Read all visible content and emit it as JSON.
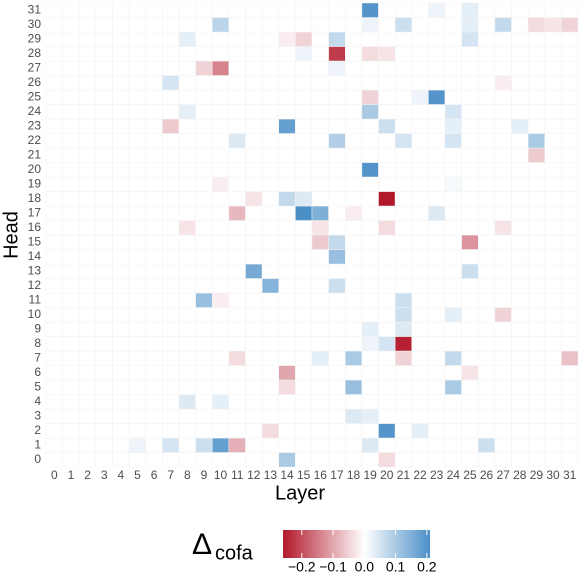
{
  "chart_data": {
    "type": "heatmap",
    "x_label": "Layer",
    "y_label": "Head",
    "x": [
      0,
      1,
      2,
      3,
      4,
      5,
      6,
      7,
      8,
      9,
      10,
      11,
      12,
      13,
      14,
      15,
      16,
      17,
      18,
      19,
      20,
      21,
      22,
      23,
      24,
      25,
      26,
      27,
      28,
      29,
      30,
      31
    ],
    "y": [
      0,
      1,
      2,
      3,
      4,
      5,
      6,
      7,
      8,
      9,
      10,
      11,
      12,
      13,
      14,
      15,
      16,
      17,
      18,
      19,
      20,
      21,
      22,
      23,
      24,
      25,
      26,
      27,
      28,
      29,
      30,
      31
    ],
    "values": [
      [
        0,
        0,
        0,
        0,
        0,
        0,
        0,
        0,
        0,
        0,
        0,
        0,
        0,
        0,
        0.1,
        0,
        0,
        0,
        0,
        0,
        -0.04,
        0,
        0,
        0,
        0,
        0,
        0,
        0,
        0,
        0,
        0,
        0
      ],
      [
        0,
        0,
        0,
        0,
        0,
        0.02,
        0,
        0.05,
        0,
        0.06,
        0.18,
        -0.09,
        0,
        0,
        0,
        0,
        0,
        0,
        0,
        0.04,
        0,
        0,
        0,
        0,
        0,
        0,
        0.06,
        0,
        0,
        0,
        0,
        0
      ],
      [
        0,
        0,
        0,
        0,
        0,
        0,
        0,
        0,
        0,
        0,
        0,
        0,
        0,
        -0.04,
        0,
        0,
        0,
        0,
        0,
        0,
        0.2,
        0,
        0.03,
        0,
        0,
        0,
        0,
        0,
        0,
        0,
        0,
        0
      ],
      [
        0,
        0,
        0,
        0,
        0,
        0,
        0,
        0,
        0,
        0,
        0,
        0,
        0,
        0,
        0,
        0,
        0,
        0,
        0.04,
        0.03,
        0,
        0,
        0,
        0,
        0,
        0,
        0,
        0,
        0,
        0,
        0,
        0
      ],
      [
        0,
        0,
        0,
        0,
        0,
        0,
        0,
        0,
        0.04,
        0,
        0.03,
        0,
        0,
        0,
        0,
        0,
        0,
        0,
        0,
        0,
        0,
        0,
        0,
        0,
        0,
        0,
        0,
        0,
        0,
        0,
        0,
        0
      ],
      [
        0,
        0,
        0,
        0,
        0,
        0,
        0,
        0,
        0,
        0,
        0,
        0,
        0,
        0,
        -0.04,
        0,
        0,
        0,
        0.12,
        0,
        0,
        0,
        0,
        0,
        0.1,
        0,
        0,
        0,
        0,
        0,
        0,
        0
      ],
      [
        0,
        0,
        0,
        0,
        0,
        0,
        0,
        0,
        0,
        0,
        0,
        0,
        0,
        0,
        -0.1,
        0,
        0,
        0,
        0,
        0,
        0,
        0,
        0,
        0,
        0,
        -0.03,
        0,
        0,
        0,
        0,
        0,
        0
      ],
      [
        0,
        0,
        0,
        0,
        0,
        0,
        0,
        0,
        0,
        0,
        0,
        -0.04,
        0,
        0,
        0,
        0,
        0.03,
        0,
        0.1,
        0,
        0,
        -0.05,
        0,
        0,
        0.07,
        0,
        0,
        0,
        0,
        0,
        0,
        -0.07
      ],
      [
        0,
        0,
        0,
        0,
        0,
        0,
        0,
        0,
        0,
        0,
        0,
        0,
        0,
        0,
        0,
        0,
        0,
        0,
        0,
        0.02,
        0.05,
        -0.25,
        0,
        0,
        0,
        0,
        0,
        0,
        0,
        0,
        0,
        0
      ],
      [
        0,
        0,
        0,
        0,
        0,
        0,
        0,
        0,
        0,
        0,
        0,
        0,
        0,
        0,
        0,
        0,
        0,
        0,
        0,
        0.03,
        0,
        0.04,
        0,
        0,
        0,
        0,
        0,
        0,
        0,
        0,
        0,
        0
      ],
      [
        0,
        0,
        0,
        0,
        0,
        0,
        0,
        0,
        0,
        0,
        0,
        0,
        0,
        0,
        0,
        0,
        0,
        0,
        0,
        0,
        0,
        0.06,
        0,
        0,
        0.03,
        0,
        0,
        -0.05,
        0,
        0,
        0,
        0
      ],
      [
        0,
        0,
        0,
        0,
        0,
        0,
        0,
        0,
        0,
        0.12,
        -0.02,
        0,
        0,
        0,
        0,
        0,
        0,
        0,
        0,
        0,
        0,
        0.06,
        0,
        0,
        0,
        0,
        0,
        0,
        0,
        0,
        0,
        0
      ],
      [
        0,
        0,
        0,
        0,
        0,
        0,
        0,
        0,
        0,
        0,
        0,
        0,
        0,
        0.14,
        0,
        0,
        0,
        0.06,
        0,
        0,
        0,
        0,
        0,
        0,
        0,
        0,
        0,
        0,
        0,
        0,
        0,
        0
      ],
      [
        0,
        0,
        0,
        0,
        0,
        0,
        0,
        0,
        0,
        0,
        0,
        0,
        0.16,
        0,
        0,
        0,
        0,
        0,
        0,
        0,
        0,
        0,
        0,
        0,
        0,
        0.06,
        0,
        0,
        0,
        0,
        0,
        0
      ],
      [
        0,
        0,
        0,
        0,
        0,
        0,
        0,
        0,
        0,
        0,
        0,
        0,
        0,
        0,
        0,
        0,
        0,
        0.12,
        0,
        0,
        0,
        0,
        0,
        0,
        0,
        0,
        0,
        0,
        0,
        0,
        0,
        0
      ],
      [
        0,
        0,
        0,
        0,
        0,
        0,
        0,
        0,
        0,
        0,
        0,
        0,
        0,
        0,
        0,
        0,
        -0.06,
        0.07,
        0,
        0,
        0,
        0,
        0,
        0,
        0,
        -0.12,
        0,
        0,
        0,
        0,
        0,
        0
      ],
      [
        0,
        0,
        0,
        0,
        0,
        0,
        0,
        0,
        -0.03,
        0,
        0,
        0,
        0,
        0,
        0,
        0,
        -0.03,
        0,
        0,
        0,
        -0.04,
        0,
        0,
        0,
        0,
        0,
        0,
        -0.03,
        0,
        0,
        0,
        0
      ],
      [
        0,
        0,
        0,
        0,
        0,
        0,
        0,
        0,
        0,
        0,
        0,
        -0.08,
        0,
        0,
        0,
        0.22,
        0.15,
        0,
        -0.02,
        0,
        0,
        0,
        0,
        0.04,
        0,
        0,
        0,
        0,
        0,
        0,
        0,
        0
      ],
      [
        0,
        0,
        0,
        0,
        0,
        0,
        0,
        0,
        0,
        0,
        0,
        0,
        -0.03,
        0,
        0.07,
        0.04,
        0,
        0,
        0,
        0,
        -0.26,
        0,
        0,
        0,
        0,
        0,
        0,
        0,
        0,
        0,
        0,
        0
      ],
      [
        0,
        0,
        0,
        0,
        0,
        0,
        0,
        0,
        0,
        0,
        -0.02,
        0,
        0,
        0,
        0,
        0,
        0,
        0,
        0,
        0,
        0,
        0,
        0,
        0,
        0.01,
        0,
        0,
        0,
        0,
        0,
        0,
        0
      ],
      [
        0,
        0,
        0,
        0,
        0,
        0,
        0,
        0,
        0,
        0,
        0,
        0,
        0,
        0,
        0,
        0,
        0,
        0,
        0,
        0.2,
        0,
        0,
        0,
        0,
        0,
        0,
        0,
        0,
        0,
        0,
        0,
        0
      ],
      [
        0,
        0,
        0,
        0,
        0,
        0,
        0,
        0,
        0,
        0,
        0,
        0,
        0,
        0,
        0,
        0,
        0,
        0,
        0,
        0,
        0,
        0,
        0,
        0,
        0,
        0,
        0,
        0,
        0,
        -0.06,
        0,
        0
      ],
      [
        0,
        0,
        0,
        0,
        0,
        0,
        0,
        0,
        0,
        0,
        0,
        0.04,
        0,
        0,
        0,
        0,
        0,
        0.09,
        0,
        0,
        0,
        0.05,
        0,
        0,
        0.05,
        0,
        0,
        0,
        0,
        0.1,
        0,
        0
      ],
      [
        0,
        0,
        0,
        0,
        0,
        0,
        0,
        -0.06,
        0,
        0,
        0,
        0,
        0,
        0,
        0.18,
        0,
        0,
        0,
        0,
        0,
        0.06,
        0,
        0,
        0,
        0.03,
        0,
        0,
        0,
        0.03,
        0,
        0,
        0
      ],
      [
        0,
        0,
        0,
        0,
        0,
        0,
        0,
        0,
        0.03,
        0,
        0,
        0,
        0,
        0,
        0,
        0,
        0,
        0,
        0,
        0.1,
        0,
        0,
        0,
        0,
        0.05,
        0,
        0,
        0,
        0,
        0,
        0,
        0
      ],
      [
        0,
        0,
        0,
        0,
        0,
        0,
        0,
        0,
        0,
        0,
        0,
        0,
        0,
        0,
        0,
        0,
        0,
        0,
        0,
        -0.05,
        0,
        0,
        0.02,
        0.2,
        0,
        0,
        0,
        0,
        0,
        0,
        0,
        0
      ],
      [
        0,
        0,
        0,
        0,
        0,
        0,
        0,
        0.05,
        0,
        0,
        0,
        0,
        0,
        0,
        0,
        0,
        0,
        0,
        0,
        0,
        0,
        0,
        0,
        0,
        0,
        0,
        0,
        -0.02,
        0,
        0,
        0,
        0
      ],
      [
        0,
        0,
        0,
        0,
        0,
        0,
        0,
        0,
        0,
        -0.05,
        -0.14,
        0,
        0,
        0,
        0,
        0,
        0,
        0.02,
        0,
        0,
        0,
        0,
        0,
        0,
        0,
        0,
        0,
        0,
        0,
        0,
        0,
        0
      ],
      [
        0,
        0,
        0,
        0,
        0,
        0,
        0,
        0,
        0,
        0,
        0,
        0,
        0,
        0,
        0,
        0.02,
        0,
        -0.22,
        0,
        -0.04,
        -0.03,
        0,
        0,
        0,
        0,
        0,
        0,
        0,
        0,
        0,
        0,
        0
      ],
      [
        0,
        0,
        0,
        0,
        0,
        0,
        0,
        0,
        0.03,
        0,
        0,
        0,
        0,
        0,
        -0.02,
        -0.05,
        0,
        0.07,
        0,
        0,
        0,
        0,
        0,
        0,
        0,
        0.05,
        0,
        0,
        0,
        0,
        0,
        0
      ],
      [
        0,
        0,
        0,
        0,
        0,
        0,
        0,
        0,
        0,
        0,
        0.08,
        0,
        0,
        0,
        0,
        0,
        0,
        0,
        0,
        0.02,
        0,
        0.06,
        0,
        0,
        0,
        0.03,
        0,
        0.07,
        0,
        -0.04,
        -0.03,
        -0.05
      ],
      [
        0,
        0,
        0,
        0,
        0,
        0,
        0,
        0,
        0,
        0,
        0,
        0,
        0,
        0,
        0,
        0,
        0,
        0,
        0,
        0.2,
        0,
        0,
        0,
        0.02,
        0,
        0.03,
        0,
        0,
        0,
        0,
        0,
        0
      ]
    ],
    "colorbar": {
      "title": {
        "symbol": "Δ",
        "subscript": "cofa"
      },
      "lim": [
        -0.26,
        0.21
      ],
      "ticks": [
        {
          "value": -0.2,
          "label": "−0.2"
        },
        {
          "value": -0.1,
          "label": "−0.1"
        },
        {
          "value": 0,
          "label": "0.0"
        },
        0.1,
        0.2
      ],
      "colors": {
        "low": "#b2182b",
        "mid": "#ffffff",
        "high": "#4b8fc7"
      }
    }
  }
}
